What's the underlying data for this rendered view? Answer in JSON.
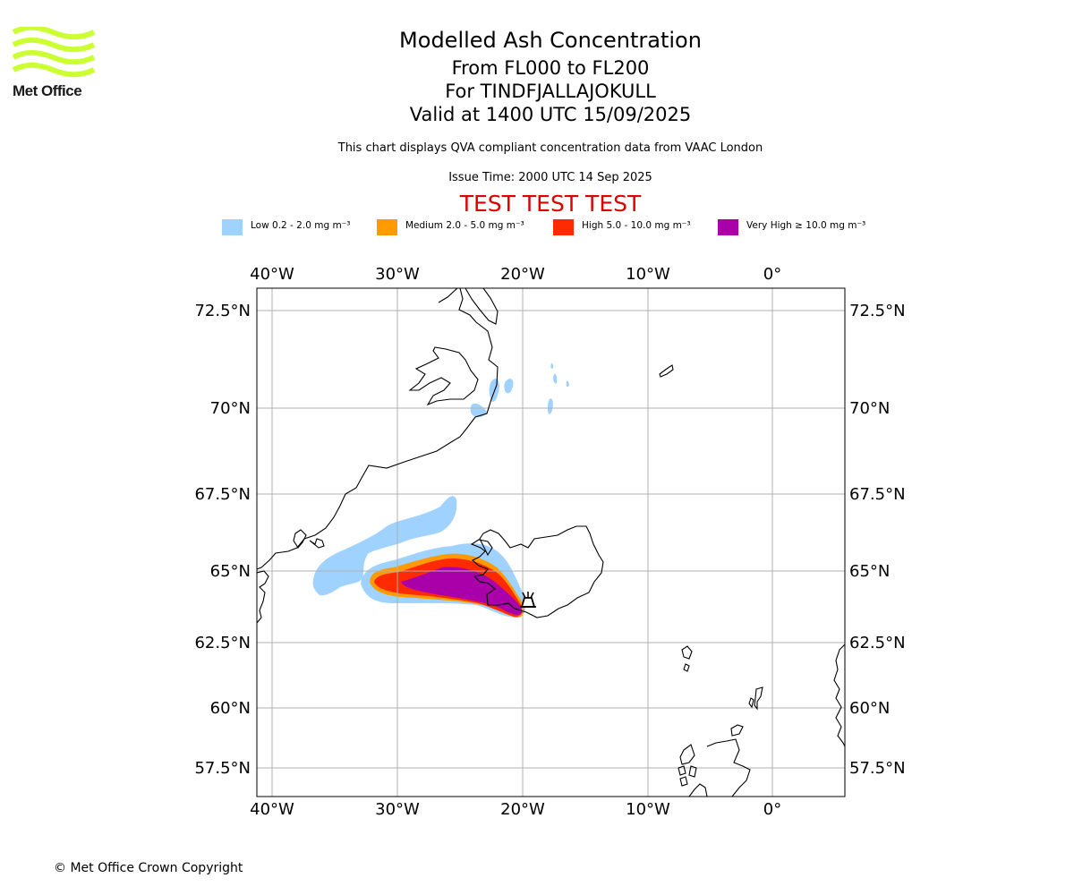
{
  "logo": {
    "text": "Met Office"
  },
  "header": {
    "title": "Modelled Ash Concentration",
    "levels": "From FL000 to FL200",
    "volcano": "For TINDFJALLAJOKULL",
    "valid": "Valid at 1400 UTC 15/09/2025",
    "description": "This chart displays QVA compliant concentration data from VAAC London",
    "issue_time": "Issue Time: 2000 UTC 14 Sep 2025",
    "test_banner": "TEST TEST TEST"
  },
  "legend": [
    {
      "label": "Low 0.2 - 2.0 mg m⁻³",
      "color": "#a0d2ff"
    },
    {
      "label": "Medium 2.0 - 5.0 mg m⁻³",
      "color": "#ff9a00"
    },
    {
      "label": "High 5.0 - 10.0 mg m⁻³",
      "color": "#ff2a00"
    },
    {
      "label": "Very High ≥ 10.0 mg m⁻³",
      "color": "#aa00aa"
    }
  ],
  "map": {
    "lon_ticks": [
      "40°W",
      "30°W",
      "20°W",
      "10°W",
      "0°"
    ],
    "lat_ticks": [
      "72.5°N",
      "70°N",
      "67.5°N",
      "65°N",
      "62.5°N",
      "60°N",
      "57.5°N"
    ],
    "volcano_marker_icon": "volcano-icon",
    "colors": {
      "grid": "#b0b0b0",
      "coastline": "#000000",
      "test_banner": "#dd0000",
      "logo": "#ccff33"
    }
  },
  "footer": {
    "copyright": "© Met Office Crown Copyright"
  }
}
